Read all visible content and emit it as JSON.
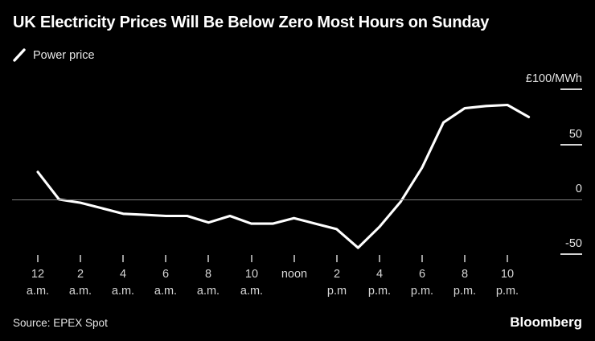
{
  "header": {
    "title": "UK Electricity Prices Will Be Below Zero Most Hours on Sunday",
    "legend": {
      "series_label": "Power price",
      "marker": "line-slash-icon"
    }
  },
  "chart_data": {
    "type": "line",
    "title": "UK Electricity Prices Will Be Below Zero Most Hours on Sunday",
    "unit_label": "£100/MWh",
    "x_unit": "hour of day",
    "xlim": [
      0,
      23
    ],
    "ylim": [
      -55,
      110
    ],
    "grid": "zero-line-only",
    "legend_position": "top-left",
    "colors": {
      "background": "#000000",
      "line": "#ffffff",
      "zero_line": "#7e7e7e",
      "axis_text": "#d6d6d6",
      "title_text": "#ffffff"
    },
    "series": [
      {
        "name": "Power price",
        "x": [
          0,
          1,
          2,
          3,
          4,
          5,
          6,
          7,
          8,
          9,
          10,
          11,
          12,
          13,
          14,
          15,
          16,
          17,
          18,
          19,
          20,
          21,
          22,
          23
        ],
        "values": [
          25,
          0,
          -3,
          -8,
          -13,
          -14,
          -15,
          -15,
          -21,
          -15,
          -22,
          -22,
          -17,
          -22,
          -27,
          -44,
          -25,
          -2,
          29,
          70,
          83,
          85,
          86,
          75
        ]
      }
    ],
    "x_ticks": [
      {
        "hour": 0,
        "l1": "12",
        "l2": "a.m."
      },
      {
        "hour": 2,
        "l1": "2",
        "l2": "a.m."
      },
      {
        "hour": 4,
        "l1": "4",
        "l2": "a.m."
      },
      {
        "hour": 6,
        "l1": "6",
        "l2": "a.m."
      },
      {
        "hour": 8,
        "l1": "8",
        "l2": "a.m."
      },
      {
        "hour": 10,
        "l1": "10",
        "l2": "a.m."
      },
      {
        "hour": 12,
        "l1": "noon",
        "l2": ""
      },
      {
        "hour": 14,
        "l1": "2",
        "l2": "p.m"
      },
      {
        "hour": 16,
        "l1": "4",
        "l2": "p.m."
      },
      {
        "hour": 18,
        "l1": "6",
        "l2": "p.m."
      },
      {
        "hour": 20,
        "l1": "8",
        "l2": "p.m."
      },
      {
        "hour": 22,
        "l1": "10",
        "l2": "p.m."
      }
    ],
    "y_ticks": [
      {
        "value": 100,
        "label": "£100/MWh"
      },
      {
        "value": 50,
        "label": "50"
      },
      {
        "value": 0,
        "label": "0"
      },
      {
        "value": -50,
        "label": "-50"
      }
    ]
  },
  "footer": {
    "source": "Source: EPEX Spot",
    "brand": "Bloomberg"
  }
}
